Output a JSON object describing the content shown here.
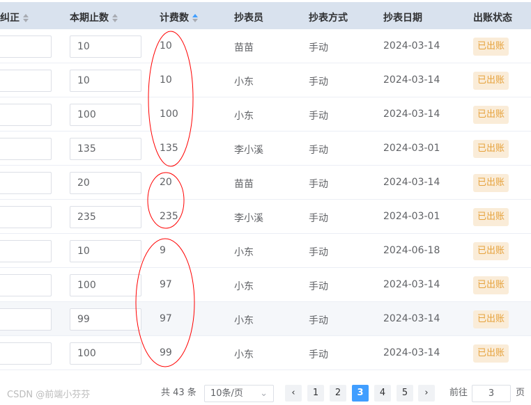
{
  "columns": [
    {
      "label": "纠正",
      "sort": "none"
    },
    {
      "label": "本期止数",
      "sort": "none"
    },
    {
      "label": "计费数",
      "sort": "ascending"
    },
    {
      "label": "抄表员"
    },
    {
      "label": "抄表方式"
    },
    {
      "label": "抄表日期"
    },
    {
      "label": "出账状态"
    }
  ],
  "rows": [
    {
      "correction": "",
      "end_reading": "10",
      "billed": "10",
      "reader": "苗苗",
      "method": "手动",
      "date": "2024-03-14",
      "status": "已出账"
    },
    {
      "correction": "",
      "end_reading": "10",
      "billed": "10",
      "reader": "小东",
      "method": "手动",
      "date": "2024-03-14",
      "status": "已出账"
    },
    {
      "correction": "",
      "end_reading": "100",
      "billed": "100",
      "reader": "小东",
      "method": "手动",
      "date": "2024-03-14",
      "status": "已出账"
    },
    {
      "correction": "",
      "end_reading": "135",
      "billed": "135",
      "reader": "李小溪",
      "method": "手动",
      "date": "2024-03-01",
      "status": "已出账"
    },
    {
      "correction": "",
      "end_reading": "20",
      "billed": "20",
      "reader": "苗苗",
      "method": "手动",
      "date": "2024-03-14",
      "status": "已出账"
    },
    {
      "correction": "",
      "end_reading": "235",
      "billed": "235",
      "reader": "李小溪",
      "method": "手动",
      "date": "2024-03-01",
      "status": "已出账"
    },
    {
      "correction": "",
      "end_reading": "10",
      "billed": "9",
      "reader": "小东",
      "method": "手动",
      "date": "2024-06-18",
      "status": "已出账"
    },
    {
      "correction": "",
      "end_reading": "100",
      "billed": "97",
      "reader": "小东",
      "method": "手动",
      "date": "2024-03-14",
      "status": "已出账"
    },
    {
      "correction": "",
      "end_reading": "99",
      "billed": "97",
      "reader": "小东",
      "method": "手动",
      "date": "2024-03-14",
      "status": "已出账"
    },
    {
      "correction": "",
      "end_reading": "100",
      "billed": "99",
      "reader": "小东",
      "method": "手动",
      "date": "2024-03-14",
      "status": "已出账"
    }
  ],
  "pagination": {
    "total": "共 43 条",
    "page_size": "10条/页",
    "pages": [
      "1",
      "2",
      "3",
      "4",
      "5"
    ],
    "current": 3,
    "goto_label": "前往",
    "goto_value": "3",
    "suffix": "页"
  },
  "watermark": "CSDN @前端小芬芬",
  "colors": {
    "accent": "#409eff",
    "annotation": "#ff0000",
    "badge_bg": "#faecd8",
    "badge_text": "#e6a23c",
    "header_bg": "#d9e2ee"
  }
}
